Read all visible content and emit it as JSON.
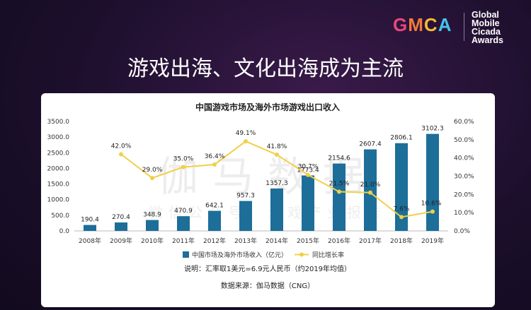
{
  "logo": {
    "g": "G",
    "m": "M",
    "c": "C",
    "a": "A",
    "awards_lines": [
      "Global",
      "Mobile",
      "Cicada",
      "Awards"
    ]
  },
  "headline": "游戏出海、文化出海成为主流",
  "watermark": {
    "main": "伽马数据",
    "sub": "微信公众号：游戏产业报告"
  },
  "chart_data": {
    "type": "bar",
    "title": "中国游戏市场及海外市场游戏出口收入",
    "categories": [
      "2008年",
      "2009年",
      "2010年",
      "2011年",
      "2012年",
      "2013年",
      "2014年",
      "2015年",
      "2016年",
      "2017年",
      "2018年",
      "2019年"
    ],
    "series": [
      {
        "name": "中国市场及海外市场收入（亿元）",
        "type": "bar",
        "axis": "left",
        "color": "#1d6e99",
        "values": [
          190.4,
          270.4,
          348.9,
          470.9,
          642.1,
          957.3,
          1357.3,
          1773.4,
          2154.6,
          2607.4,
          2806.1,
          3102.3
        ],
        "labels": [
          "190.4",
          "270.4",
          "348.9",
          "470.9",
          "642.1",
          "957.3",
          "1357.3",
          "1773.4",
          "2154.6",
          "2607.4",
          "2806.1",
          "3102.3"
        ]
      },
      {
        "name": "同比增长率",
        "type": "line",
        "axis": "right",
        "color": "#f0d046",
        "values": [
          null,
          42.0,
          29.0,
          35.0,
          36.4,
          49.1,
          41.8,
          30.7,
          21.5,
          21.0,
          7.6,
          10.6
        ],
        "labels": [
          "",
          "42.0%",
          "29.0%",
          "35.0%",
          "36.4%",
          "49.1%",
          "41.8%",
          "30.7%",
          "21.5%",
          "21.0%",
          "7.6%",
          "10.6%"
        ]
      }
    ],
    "y_left": {
      "min": 0,
      "max": 3500,
      "ticks": [
        "0.0",
        "500.0",
        "1000.0",
        "1500.0",
        "2000.0",
        "2500.0",
        "3000.0",
        "3500.0"
      ]
    },
    "y_right": {
      "min": 0,
      "max": 60,
      "ticks": [
        "0.0%",
        "10.0%",
        "20.0%",
        "30.0%",
        "40.0%",
        "50.0%",
        "60.0%"
      ]
    },
    "grid": false,
    "legend_position": "bottom",
    "notes": [
      "说明：汇率取1美元=6.9元人民币（约2019年均值）",
      "数据来源：伽马数据（CNG）"
    ]
  }
}
